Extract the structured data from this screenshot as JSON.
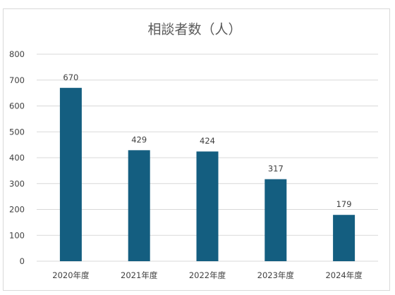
{
  "chart_data": {
    "type": "bar",
    "title": "相談者数（人）",
    "categories": [
      "2020年度",
      "2021年度",
      "2022年度",
      "2023年度",
      "2024年度"
    ],
    "values": [
      670,
      429,
      424,
      317,
      179
    ],
    "data_labels": [
      "670",
      "429",
      "424",
      "317",
      "179"
    ],
    "ylim": [
      0,
      800
    ],
    "yticks": [
      0,
      100,
      200,
      300,
      400,
      500,
      600,
      700,
      800
    ],
    "xlabel": "",
    "ylabel": "",
    "grid": true,
    "legend": "none",
    "bar_color": "#145e80"
  }
}
